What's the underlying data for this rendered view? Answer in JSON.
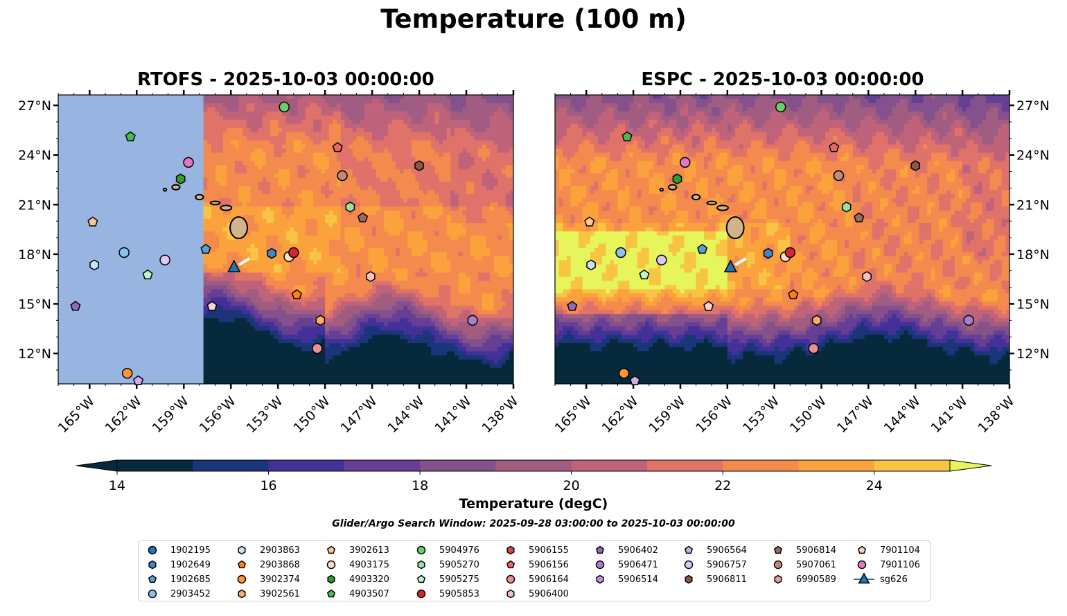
{
  "figure": {
    "title": "Temperature (100 m)",
    "search_window": "Glider/Argo Search Window: 2025-09-28 03:00:00 to 2025-10-03 00:00:00"
  },
  "panels": [
    {
      "id": "rtofs",
      "title": "RTOFS - 2025-10-03 00:00:00",
      "masked_west_of_lon": -157.9
    },
    {
      "id": "espc",
      "title": "ESPC - 2025-10-03 00:00:00",
      "masked_west_of_lon": null
    }
  ],
  "axes": {
    "lon_range": [
      -167,
      -138
    ],
    "lat_range": [
      10.16,
      27.63
    ],
    "x_ticks": [
      {
        "value": -165,
        "label": "165°W"
      },
      {
        "value": -162,
        "label": "162°W"
      },
      {
        "value": -159,
        "label": "159°W"
      },
      {
        "value": -156,
        "label": "156°W"
      },
      {
        "value": -153,
        "label": "153°W"
      },
      {
        "value": -150,
        "label": "150°W"
      },
      {
        "value": -147,
        "label": "147°W"
      },
      {
        "value": -144,
        "label": "144°W"
      },
      {
        "value": -141,
        "label": "141°W"
      },
      {
        "value": -138,
        "label": "138°W"
      }
    ],
    "y_ticks": [
      {
        "value": 27,
        "label": "27°N"
      },
      {
        "value": 24,
        "label": "24°N"
      },
      {
        "value": 21,
        "label": "21°N"
      },
      {
        "value": 18,
        "label": "18°N"
      },
      {
        "value": 15,
        "label": "15°N"
      },
      {
        "value": 12,
        "label": "12°N"
      }
    ]
  },
  "colorbar": {
    "title": "Temperature (degC)",
    "range": [
      14,
      25
    ],
    "extend": "both",
    "levels": [
      14,
      15,
      16,
      17,
      18,
      19,
      20,
      21,
      22,
      23,
      24,
      25
    ],
    "colors": [
      "#062a3c",
      "#1b357a",
      "#433199",
      "#663f95",
      "#84518c",
      "#a15c82",
      "#bf637a",
      "#df7269",
      "#f48a4d",
      "#fba23c",
      "#f7c443"
    ],
    "under_color": "#062a3c",
    "over_color": "#e5f55a",
    "tick_labels": [
      {
        "value": 14,
        "label": "14"
      },
      {
        "value": 16,
        "label": "16"
      },
      {
        "value": 18,
        "label": "18"
      },
      {
        "value": 20,
        "label": "20"
      },
      {
        "value": 22,
        "label": "22"
      },
      {
        "value": 24,
        "label": "24"
      }
    ]
  },
  "mask_color": "#97b5e0",
  "land_color": "#d2b48c",
  "chart_data": {
    "type": "scatter",
    "title": "Temperature (100 m)",
    "xlabel": "Longitude",
    "ylabel": "Latitude",
    "xlim": [
      -167,
      -138
    ],
    "ylim": [
      10.16,
      27.63
    ],
    "grid": false,
    "legend_placement": "bottom-center",
    "series": [
      {
        "name": "1902195",
        "marker": "circle",
        "color": "#1f77b4",
        "points": []
      },
      {
        "name": "1902649",
        "marker": "hexagon",
        "color": "#3b88c4",
        "points": [
          [
            -153.4,
            18.05
          ]
        ]
      },
      {
        "name": "1902685",
        "marker": "pentagon",
        "color": "#5aa0d8",
        "points": [
          [
            -157.6,
            18.3
          ]
        ]
      },
      {
        "name": "2903452",
        "marker": "circle",
        "color": "#8dc1ea",
        "points": [
          [
            -162.8,
            18.1
          ]
        ]
      },
      {
        "name": "2903863",
        "marker": "hexagon",
        "color": "#c6e4f8",
        "points": [
          [
            -164.7,
            17.35
          ]
        ]
      },
      {
        "name": "2903868",
        "marker": "pentagon",
        "color": "#ff7f0e",
        "points": [
          [
            -151.8,
            15.55
          ]
        ]
      },
      {
        "name": "3902374",
        "marker": "circle",
        "color": "#ff9534",
        "points": [
          [
            -162.6,
            10.8
          ]
        ]
      },
      {
        "name": "3902561",
        "marker": "hexagon",
        "color": "#ffac63",
        "points": [
          [
            -150.3,
            14.0
          ]
        ]
      },
      {
        "name": "3902613",
        "marker": "pentagon",
        "color": "#ffc694",
        "points": [
          [
            -164.8,
            19.95
          ]
        ]
      },
      {
        "name": "4903175",
        "marker": "circle",
        "color": "#ffdfc2",
        "points": [
          [
            -152.3,
            17.85
          ]
        ]
      },
      {
        "name": "4903320",
        "marker": "hexagon",
        "color": "#2ca02c",
        "points": [
          [
            -159.2,
            22.55
          ]
        ]
      },
      {
        "name": "4903507",
        "marker": "pentagon",
        "color": "#4cbb4c",
        "points": [
          [
            -162.4,
            25.1
          ]
        ]
      },
      {
        "name": "5904976",
        "marker": "circle",
        "color": "#6ccd6c",
        "points": [
          [
            -152.6,
            26.9
          ]
        ]
      },
      {
        "name": "5905270",
        "marker": "hexagon",
        "color": "#98e398",
        "points": [
          [
            -148.4,
            20.85
          ]
        ]
      },
      {
        "name": "5905275",
        "marker": "pentagon",
        "color": "#c4f5c4",
        "points": [
          [
            -161.3,
            16.75
          ]
        ]
      },
      {
        "name": "5905853",
        "marker": "circle",
        "color": "#d62728",
        "points": [
          [
            -152.0,
            18.1
          ]
        ]
      },
      {
        "name": "5906155",
        "marker": "hexagon",
        "color": "#dd4647",
        "points": []
      },
      {
        "name": "5906156",
        "marker": "pentagon",
        "color": "#e66869",
        "points": [
          [
            -149.2,
            24.45
          ]
        ]
      },
      {
        "name": "5906164",
        "marker": "circle",
        "color": "#f08f8f",
        "points": [
          [
            -150.5,
            12.3
          ]
        ]
      },
      {
        "name": "5906400",
        "marker": "hexagon",
        "color": "#f8c0c0",
        "points": [
          [
            -147.1,
            16.65
          ]
        ]
      },
      {
        "name": "5906402",
        "marker": "pentagon",
        "color": "#9467bd",
        "points": [
          [
            -165.9,
            14.85
          ]
        ]
      },
      {
        "name": "5906471",
        "marker": "circle",
        "color": "#a67fce",
        "points": [
          [
            -140.6,
            14.0
          ]
        ]
      },
      {
        "name": "5906514",
        "marker": "hexagon",
        "color": "#b996da",
        "points": []
      },
      {
        "name": "5906564",
        "marker": "pentagon",
        "color": "#cbafe8",
        "points": [
          [
            -161.9,
            10.35
          ]
        ]
      },
      {
        "name": "5906757",
        "marker": "circle",
        "color": "#ddc8f5",
        "points": [
          [
            -160.2,
            17.65
          ]
        ]
      },
      {
        "name": "5906811",
        "marker": "hexagon",
        "color": "#8c564b",
        "points": [
          [
            -144.0,
            23.35
          ]
        ]
      },
      {
        "name": "5906814",
        "marker": "pentagon",
        "color": "#a0685c",
        "points": [
          [
            -147.6,
            20.2
          ]
        ]
      },
      {
        "name": "5907061",
        "marker": "circle",
        "color": "#c08a7e",
        "points": [
          [
            -148.9,
            22.75
          ]
        ]
      },
      {
        "name": "6990589",
        "marker": "hexagon",
        "color": "#dba497",
        "points": []
      },
      {
        "name": "7901104",
        "marker": "pentagon",
        "color": "#f9d2c8",
        "points": [
          [
            -157.2,
            14.85
          ]
        ]
      },
      {
        "name": "7901106",
        "marker": "circle",
        "color": "#e377c2",
        "points": [
          [
            -158.7,
            23.55
          ]
        ]
      },
      {
        "name": "sg626",
        "marker": "triangle-line",
        "color": "#1f77b4",
        "points": [
          [
            -155.8,
            17.2
          ]
        ],
        "track": [
          [
            -155.5,
            17.35
          ],
          [
            -154.8,
            17.75
          ]
        ]
      }
    ]
  },
  "legend": {
    "columns": [
      [
        "1902195",
        "1902649",
        "1902685",
        "2903452"
      ],
      [
        "2903863",
        "2903868",
        "3902374",
        "3902561"
      ],
      [
        "3902613",
        "4903175",
        "4903320",
        "4903507"
      ],
      [
        "5904976",
        "5905270",
        "5905275",
        "5905853"
      ],
      [
        "5906155",
        "5906156",
        "5906164",
        "5906400"
      ],
      [
        "5906402",
        "5906471",
        "5906514"
      ],
      [
        "5906564",
        "5906757",
        "5906811"
      ],
      [
        "5906814",
        "5907061",
        "6990589"
      ],
      [
        "7901104",
        "7901106",
        "sg626"
      ]
    ]
  }
}
